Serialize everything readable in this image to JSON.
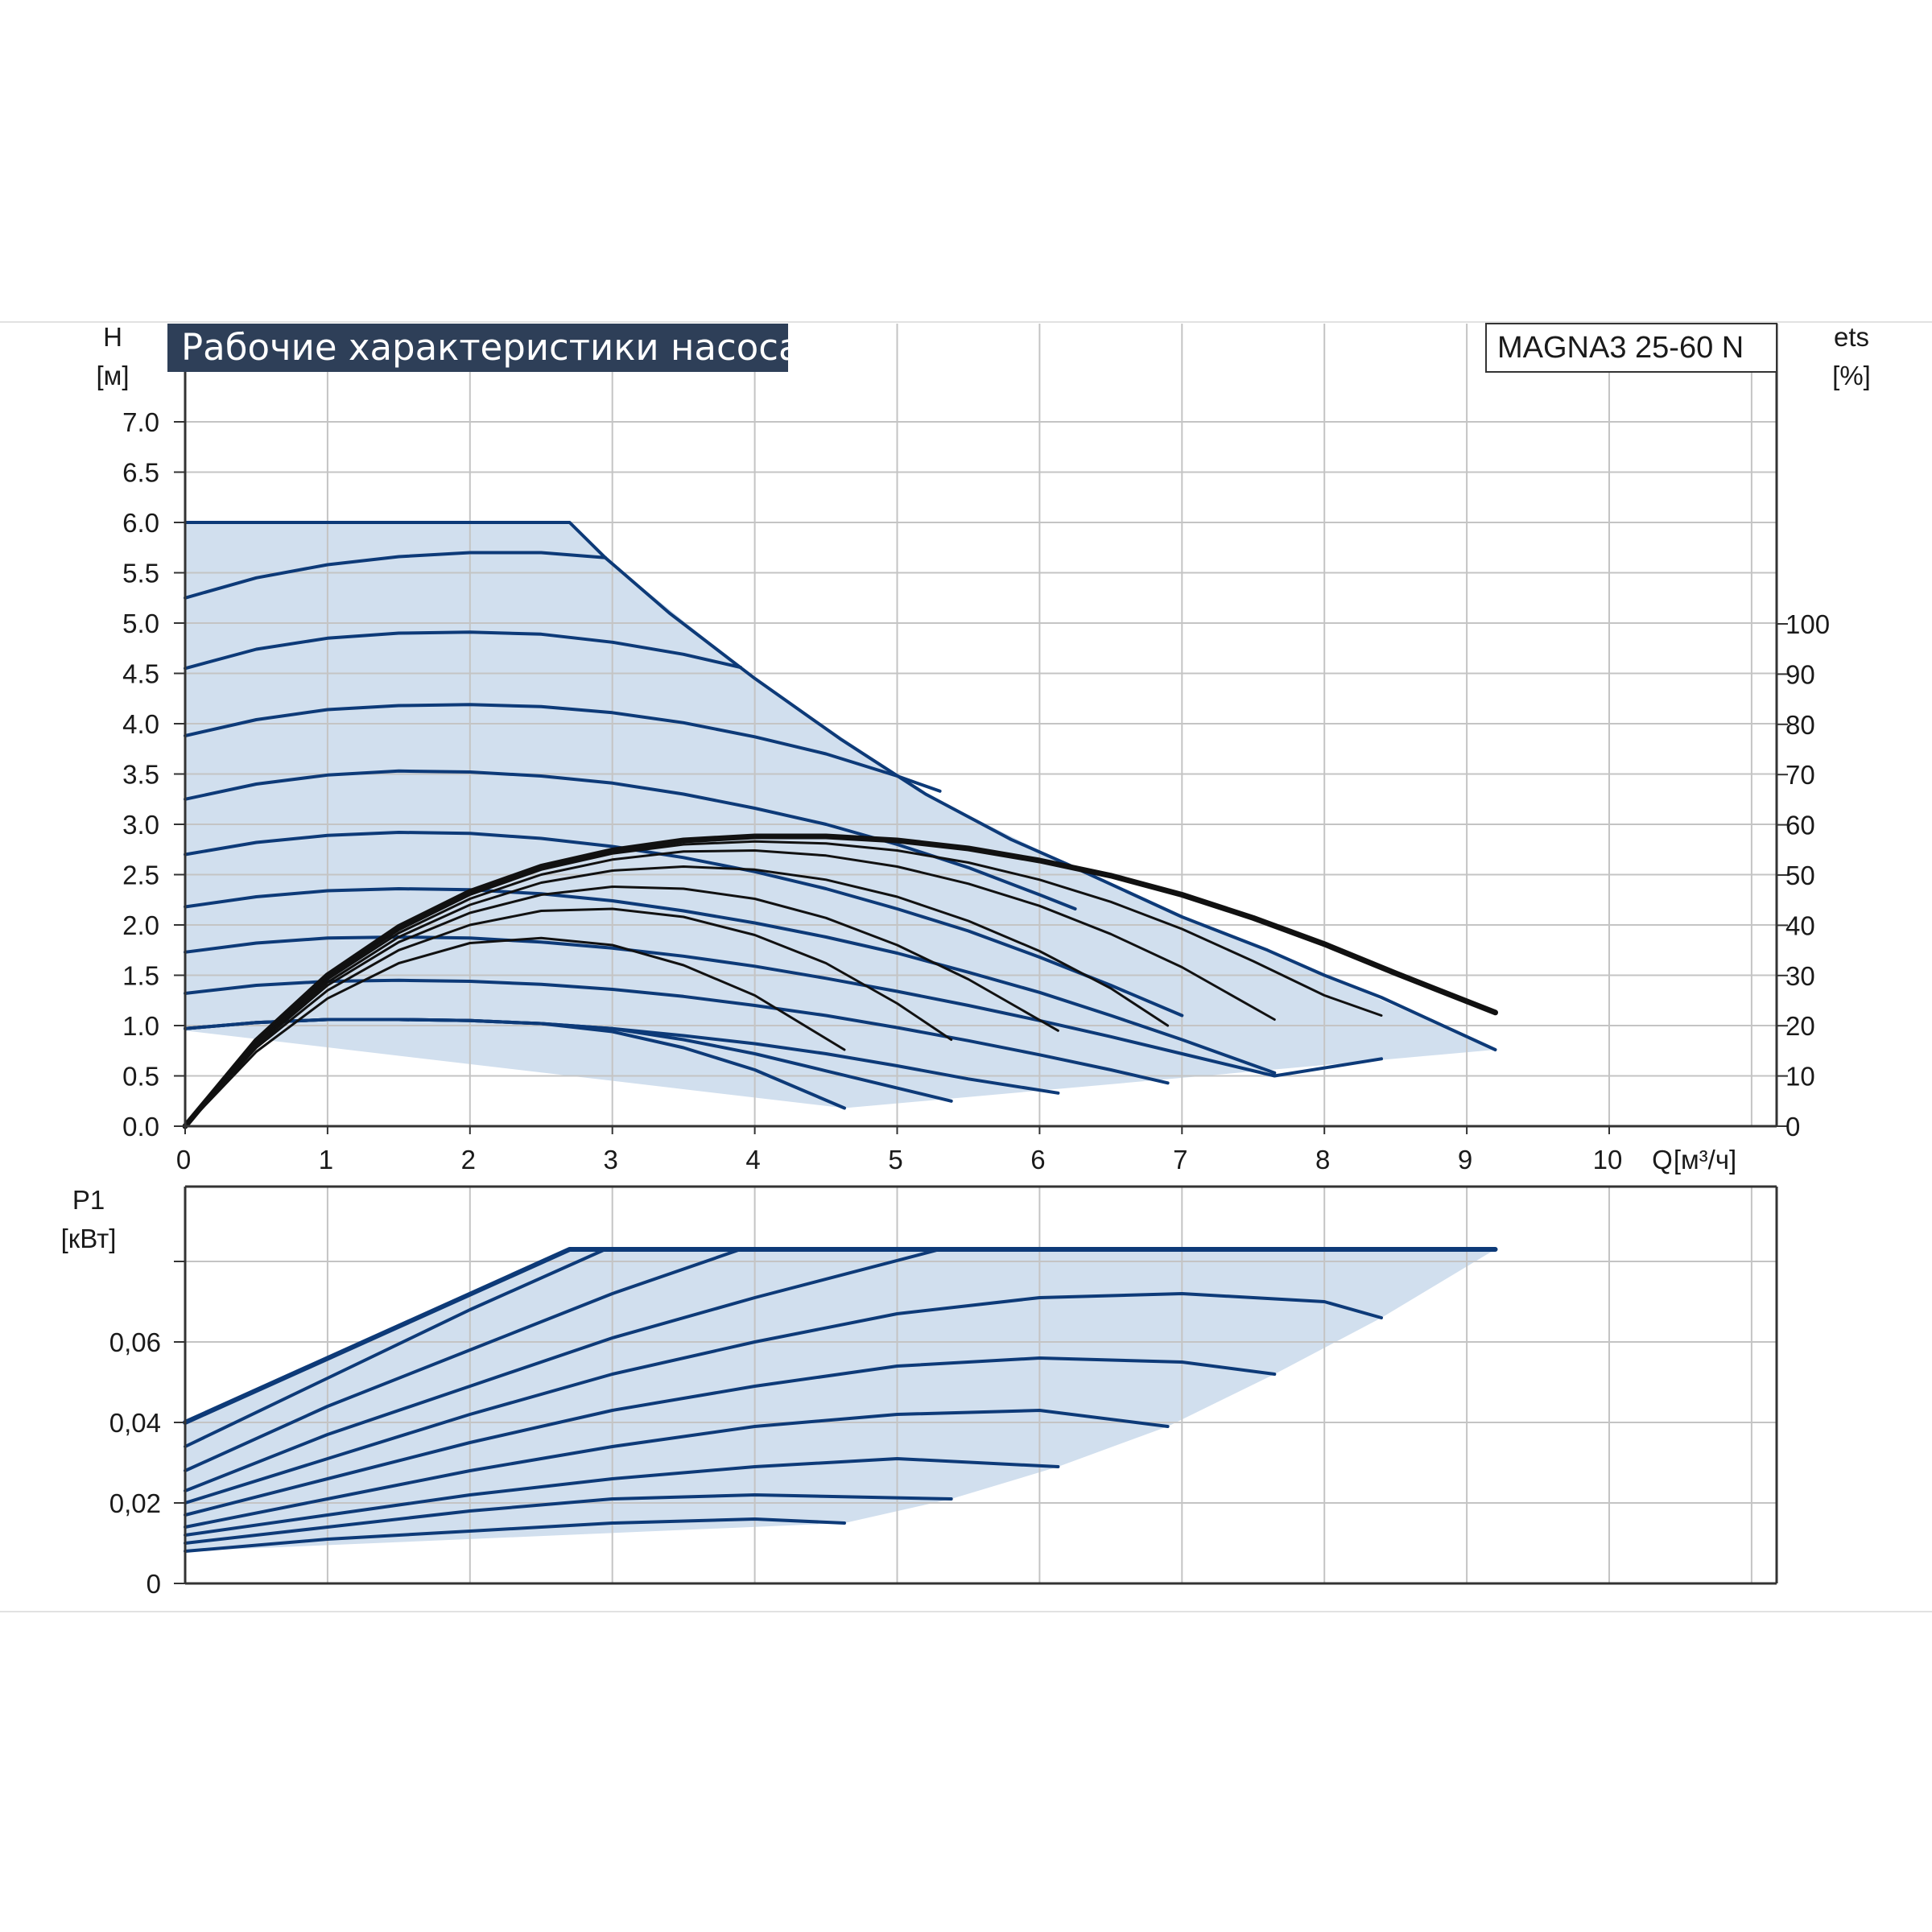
{
  "chart_data": [
    {
      "type": "line",
      "title": "Рабочие характеристики насоса",
      "model": "MAGNA3 25-60 N",
      "ylabel": "H",
      "yunit": "[м]",
      "xlabel": "Q",
      "xunit": "[м³/ч]",
      "y2label": "ets",
      "y2unit": "[%]",
      "xlim": [
        0,
        11.2
      ],
      "ylim": [
        0,
        7.5
      ],
      "y2lim": [
        0,
        100
      ],
      "x_ticks": [
        "0",
        "1",
        "2",
        "3",
        "4",
        "5",
        "6",
        "7",
        "8",
        "9",
        "10"
      ],
      "y_ticks": [
        "0.0",
        "0.5",
        "1.0",
        "1.5",
        "2.0",
        "2.5",
        "3.0",
        "3.5",
        "4.0",
        "4.5",
        "5.0",
        "5.5",
        "6.0",
        "6.5",
        "7.0"
      ],
      "y2_ticks": [
        "0",
        "10",
        "20",
        "30",
        "40",
        "50",
        "60",
        "70",
        "80",
        "90",
        "100"
      ],
      "grid": true,
      "operating_region": [
        [
          0,
          6.0
        ],
        [
          2.7,
          6.0
        ],
        [
          2.95,
          5.65
        ],
        [
          4.0,
          4.45
        ],
        [
          5.2,
          3.3
        ],
        [
          6.2,
          2.6
        ],
        [
          7.0,
          2.08
        ],
        [
          8.0,
          1.5
        ],
        [
          9.2,
          0.76
        ],
        [
          4.63,
          0.18
        ],
        [
          4.63,
          0.18
        ],
        [
          0,
          0.95
        ]
      ],
      "series": [
        {
          "group": "head",
          "x": [
            0,
            2.7,
            2.95,
            3.4,
            4.0,
            4.6,
            5.2,
            5.8,
            6.2,
            7.0,
            7.6,
            8.0,
            8.4,
            9.2
          ],
          "y": [
            6.0,
            6.0,
            5.65,
            5.1,
            4.45,
            3.85,
            3.3,
            2.85,
            2.6,
            2.08,
            1.75,
            1.5,
            1.28,
            0.76
          ]
        },
        {
          "group": "head",
          "x": [
            0,
            0.5,
            1.0,
            1.5,
            2.0,
            2.5,
            2.95
          ],
          "y": [
            5.25,
            5.45,
            5.58,
            5.66,
            5.7,
            5.7,
            5.65
          ]
        },
        {
          "group": "head",
          "x": [
            0,
            0.5,
            1.0,
            1.5,
            2.0,
            2.5,
            3.0,
            3.5,
            3.9
          ],
          "y": [
            4.55,
            4.74,
            4.85,
            4.9,
            4.91,
            4.89,
            4.81,
            4.69,
            4.56
          ]
        },
        {
          "group": "head",
          "x": [
            0,
            0.5,
            1.0,
            1.5,
            2.0,
            2.5,
            3.0,
            3.5,
            4.0,
            4.5,
            5.0,
            5.3
          ],
          "y": [
            3.88,
            4.04,
            4.14,
            4.18,
            4.19,
            4.17,
            4.11,
            4.01,
            3.87,
            3.7,
            3.48,
            3.33
          ]
        },
        {
          "group": "head",
          "x": [
            0,
            0.5,
            1.0,
            1.5,
            2.0,
            2.5,
            3.0,
            3.5,
            4.0,
            4.5,
            5.0,
            5.5,
            6.0,
            6.25
          ],
          "y": [
            3.25,
            3.4,
            3.49,
            3.53,
            3.52,
            3.48,
            3.41,
            3.3,
            3.16,
            3.0,
            2.8,
            2.57,
            2.3,
            2.16
          ]
        },
        {
          "group": "head",
          "x": [
            0,
            0.5,
            1.0,
            1.5,
            2.0,
            2.5,
            3.0,
            3.5,
            4.0,
            4.5,
            5.0,
            5.5,
            6.0,
            6.5,
            7.0
          ],
          "y": [
            2.7,
            2.82,
            2.89,
            2.92,
            2.91,
            2.86,
            2.78,
            2.67,
            2.53,
            2.36,
            2.16,
            1.94,
            1.68,
            1.4,
            1.1
          ]
        },
        {
          "group": "head",
          "x": [
            0,
            0.5,
            1.0,
            1.5,
            2.0,
            2.5,
            3.0,
            3.5,
            4.0,
            4.5,
            5.0,
            5.5,
            6.0,
            6.5,
            7.0,
            7.65
          ],
          "y": [
            2.18,
            2.28,
            2.34,
            2.36,
            2.35,
            2.31,
            2.24,
            2.14,
            2.02,
            1.88,
            1.72,
            1.53,
            1.33,
            1.1,
            0.86,
            0.53
          ]
        },
        {
          "group": "head",
          "x": [
            0,
            0.5,
            1.0,
            1.5,
            2.0,
            2.5,
            3.0,
            3.5,
            4.0,
            4.5,
            5.0,
            5.5,
            6.0,
            6.5,
            7.0,
            7.65,
            8.4
          ],
          "y": [
            1.73,
            1.82,
            1.87,
            1.88,
            1.87,
            1.83,
            1.77,
            1.69,
            1.59,
            1.47,
            1.34,
            1.2,
            1.05,
            0.89,
            0.72,
            0.5,
            0.67
          ]
        },
        {
          "group": "head",
          "x": [
            0,
            0.5,
            1.0,
            1.5,
            2.0,
            2.5,
            3.0,
            3.5,
            4.0,
            4.5,
            5.0,
            5.5,
            6.0,
            6.5,
            6.9
          ],
          "y": [
            1.32,
            1.4,
            1.44,
            1.45,
            1.44,
            1.41,
            1.36,
            1.29,
            1.2,
            1.1,
            0.98,
            0.85,
            0.71,
            0.56,
            0.43
          ]
        },
        {
          "group": "head",
          "x": [
            0,
            0.5,
            1.0,
            1.5,
            2.0,
            2.5,
            3.0,
            3.5,
            4.0,
            4.5,
            5.0,
            5.5,
            6.13
          ],
          "y": [
            0.97,
            1.03,
            1.06,
            1.06,
            1.05,
            1.02,
            0.97,
            0.9,
            0.82,
            0.72,
            0.6,
            0.47,
            0.33
          ]
        },
        {
          "group": "head",
          "x": [
            0,
            0.5,
            1.0,
            1.5,
            2.0,
            2.5,
            3.0,
            3.5,
            4.0,
            4.5,
            5.38
          ],
          "y": [
            0.97,
            1.03,
            1.06,
            1.06,
            1.05,
            1.02,
            0.97,
            0.86,
            0.72,
            0.55,
            0.25
          ]
        },
        {
          "group": "head",
          "x": [
            0,
            0.5,
            1.0,
            1.5,
            2.0,
            2.5,
            3.0,
            3.5,
            4.0,
            4.63
          ],
          "y": [
            0.97,
            1.03,
            1.06,
            1.06,
            1.05,
            1.02,
            0.94,
            0.78,
            0.56,
            0.18
          ]
        },
        {
          "group": "efficiency",
          "emphasis": true,
          "x": [
            0,
            0.5,
            1.0,
            1.5,
            2.0,
            2.5,
            3.0,
            3.5,
            4.0,
            4.5,
            5.0,
            5.5,
            6.0,
            6.5,
            7.0,
            7.5,
            8.0,
            8.5,
            9.2
          ],
          "y": [
            0,
            0.85,
            1.5,
            1.98,
            2.33,
            2.58,
            2.74,
            2.84,
            2.88,
            2.88,
            2.84,
            2.76,
            2.64,
            2.49,
            2.3,
            2.07,
            1.81,
            1.52,
            1.13
          ]
        },
        {
          "group": "efficiency",
          "x": [
            0,
            0.5,
            1.0,
            1.5,
            2.0,
            2.5,
            3.0,
            3.5,
            4.0,
            4.5,
            5.0,
            5.5,
            6.0,
            6.5,
            7.0,
            7.5,
            8.0,
            8.4
          ],
          "y": [
            0,
            0.84,
            1.48,
            1.95,
            2.3,
            2.55,
            2.71,
            2.8,
            2.83,
            2.81,
            2.74,
            2.62,
            2.45,
            2.23,
            1.96,
            1.64,
            1.3,
            1.1
          ]
        },
        {
          "group": "efficiency",
          "x": [
            0,
            0.5,
            1.0,
            1.5,
            2.0,
            2.5,
            3.0,
            3.5,
            4.0,
            4.5,
            5.0,
            5.5,
            6.0,
            6.5,
            7.0,
            7.65
          ],
          "y": [
            0,
            0.83,
            1.46,
            1.92,
            2.26,
            2.5,
            2.65,
            2.73,
            2.74,
            2.69,
            2.58,
            2.41,
            2.19,
            1.91,
            1.58,
            1.06
          ]
        },
        {
          "group": "efficiency",
          "x": [
            0,
            0.5,
            1.0,
            1.5,
            2.0,
            2.5,
            3.0,
            3.5,
            4.0,
            4.5,
            5.0,
            5.5,
            6.0,
            6.5,
            6.9
          ],
          "y": [
            0,
            0.82,
            1.43,
            1.88,
            2.2,
            2.42,
            2.54,
            2.58,
            2.55,
            2.45,
            2.28,
            2.04,
            1.74,
            1.37,
            1.0
          ]
        },
        {
          "group": "efficiency",
          "x": [
            0,
            0.5,
            1.0,
            1.5,
            2.0,
            2.5,
            3.0,
            3.5,
            4.0,
            4.5,
            5.0,
            5.5,
            6.13
          ],
          "y": [
            0,
            0.8,
            1.4,
            1.83,
            2.12,
            2.3,
            2.38,
            2.36,
            2.26,
            2.07,
            1.8,
            1.46,
            0.95
          ]
        },
        {
          "group": "efficiency",
          "x": [
            0,
            0.5,
            1.0,
            1.5,
            2.0,
            2.5,
            3.0,
            3.5,
            4.0,
            4.5,
            5.0,
            5.38
          ],
          "y": [
            0,
            0.78,
            1.35,
            1.75,
            2.0,
            2.14,
            2.16,
            2.08,
            1.9,
            1.62,
            1.22,
            0.86
          ]
        },
        {
          "group": "efficiency",
          "x": [
            0,
            0.5,
            1.0,
            1.5,
            2.0,
            2.5,
            3.0,
            3.5,
            4.0,
            4.63
          ],
          "y": [
            0,
            0.74,
            1.27,
            1.62,
            1.82,
            1.87,
            1.8,
            1.6,
            1.3,
            0.76
          ]
        }
      ]
    },
    {
      "type": "line",
      "ylabel": "P1",
      "yunit": "[кВт]",
      "xlim": [
        0,
        11.2
      ],
      "ylim": [
        0,
        0.082
      ],
      "y_ticks": [
        "0",
        "0,02",
        "0,04",
        "0,06"
      ],
      "grid": true,
      "operating_region": [
        [
          0,
          0.04
        ],
        [
          2.7,
          0.083
        ],
        [
          9.2,
          0.083
        ],
        [
          8.4,
          0.066
        ],
        [
          7.65,
          0.052
        ],
        [
          6.9,
          0.039
        ],
        [
          6.13,
          0.029
        ],
        [
          5.38,
          0.021
        ],
        [
          4.63,
          0.015
        ],
        [
          0,
          0.008
        ]
      ],
      "series": [
        {
          "group": "power",
          "x": [
            0,
            2.7,
            9.2
          ],
          "y": [
            0.04,
            0.083,
            0.083
          ]
        },
        {
          "group": "power",
          "x": [
            0,
            1.0,
            2.0,
            2.95
          ],
          "y": [
            0.034,
            0.051,
            0.068,
            0.083
          ]
        },
        {
          "group": "power",
          "x": [
            0,
            1.0,
            2.0,
            3.0,
            3.9
          ],
          "y": [
            0.028,
            0.044,
            0.058,
            0.072,
            0.083
          ]
        },
        {
          "group": "power",
          "x": [
            0,
            1.0,
            2.0,
            3.0,
            4.0,
            5.3
          ],
          "y": [
            0.023,
            0.037,
            0.049,
            0.061,
            0.071,
            0.083
          ]
        },
        {
          "group": "power",
          "x": [
            0,
            1.0,
            2.0,
            3.0,
            4.0,
            5.0,
            6.0,
            7.0,
            8.0,
            8.4
          ],
          "y": [
            0.02,
            0.031,
            0.042,
            0.052,
            0.06,
            0.067,
            0.071,
            0.072,
            0.07,
            0.066
          ]
        },
        {
          "group": "power",
          "x": [
            0,
            1.0,
            2.0,
            3.0,
            4.0,
            5.0,
            6.0,
            7.0,
            7.65
          ],
          "y": [
            0.017,
            0.026,
            0.035,
            0.043,
            0.049,
            0.054,
            0.056,
            0.055,
            0.052
          ]
        },
        {
          "group": "power",
          "x": [
            0,
            1.0,
            2.0,
            3.0,
            4.0,
            5.0,
            6.0,
            6.9
          ],
          "y": [
            0.014,
            0.021,
            0.028,
            0.034,
            0.039,
            0.042,
            0.043,
            0.039
          ]
        },
        {
          "group": "power",
          "x": [
            0,
            1.0,
            2.0,
            3.0,
            4.0,
            5.0,
            6.13
          ],
          "y": [
            0.012,
            0.017,
            0.022,
            0.026,
            0.029,
            0.031,
            0.029
          ]
        },
        {
          "group": "power",
          "x": [
            0,
            1.0,
            2.0,
            3.0,
            4.0,
            5.38
          ],
          "y": [
            0.01,
            0.014,
            0.018,
            0.021,
            0.022,
            0.021
          ]
        },
        {
          "group": "power",
          "x": [
            0,
            1.0,
            2.0,
            3.0,
            4.0,
            4.63
          ],
          "y": [
            0.008,
            0.011,
            0.013,
            0.015,
            0.016,
            0.015
          ]
        }
      ]
    }
  ],
  "colors": {
    "curve": "#0d3a78",
    "efficiency": "#111111",
    "region_fill": "#d1dfee",
    "grid": "#c4c4c4",
    "frame": "#333333",
    "title_bg": "#2e3f58"
  }
}
